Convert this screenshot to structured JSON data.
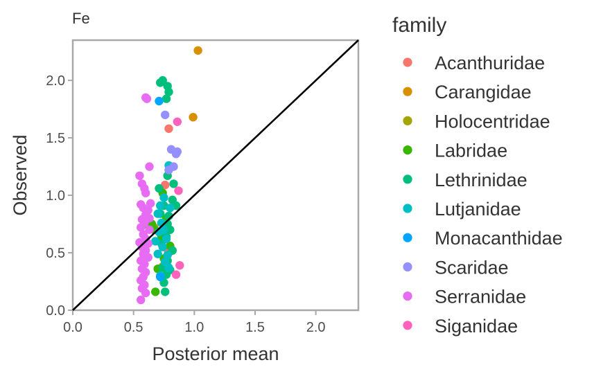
{
  "chart_data": {
    "type": "scatter",
    "title": "Fe",
    "xlabel": "Posterior mean",
    "ylabel": "Observed",
    "xlim": [
      0,
      2.35
    ],
    "ylim": [
      0,
      2.35
    ],
    "x_ticks": [
      {
        "value": 0.0,
        "label": "0.0"
      },
      {
        "value": 0.5,
        "label": "0.5"
      },
      {
        "value": 1.0,
        "label": "1.0"
      },
      {
        "value": 1.5,
        "label": "1.5"
      },
      {
        "value": 2.0,
        "label": "2.0"
      }
    ],
    "y_ticks": [
      {
        "value": 0.0,
        "label": "0.0"
      },
      {
        "value": 0.5,
        "label": "0.5"
      },
      {
        "value": 1.0,
        "label": "1.0"
      },
      {
        "value": 1.5,
        "label": "1.5"
      },
      {
        "value": 2.0,
        "label": "2.0"
      }
    ],
    "grid": false,
    "reference_line": {
      "type": "identity",
      "color": "#000000"
    },
    "legend": {
      "title": "family",
      "placement": "right"
    },
    "series": [
      {
        "name": "Acanthuridae",
        "color": "#F8766D",
        "points": [
          [
            0.79,
            1.58
          ],
          [
            0.76,
            1.09
          ],
          [
            0.8,
            0.56
          ],
          [
            0.8,
            0.51
          ],
          [
            0.78,
            0.53
          ]
        ]
      },
      {
        "name": "Carangidae",
        "color": "#D89000",
        "points": [
          [
            1.03,
            2.26
          ],
          [
            0.99,
            1.68
          ]
        ]
      },
      {
        "name": "Holocentridae",
        "color": "#A3A500",
        "points": [
          [
            0.7,
            0.36
          ],
          [
            0.74,
            0.38
          ],
          [
            0.67,
            0.72
          ]
        ]
      },
      {
        "name": "Labridae",
        "color": "#39B600",
        "points": [
          [
            0.65,
            0.75
          ],
          [
            0.67,
            0.7
          ],
          [
            0.73,
            0.64
          ],
          [
            0.74,
            1.02
          ],
          [
            0.7,
            0.36
          ],
          [
            0.68,
            0.16
          ],
          [
            0.77,
            0.8
          ],
          [
            0.8,
            0.56
          ],
          [
            0.63,
            0.72
          ],
          [
            0.75,
            0.45
          ]
        ]
      },
      {
        "name": "Lethrinidae",
        "color": "#00BF7D",
        "points": [
          [
            0.74,
            2.0
          ],
          [
            0.72,
            1.98
          ],
          [
            0.78,
            1.95
          ],
          [
            0.79,
            1.9
          ],
          [
            0.77,
            1.84
          ],
          [
            0.78,
            1.17
          ],
          [
            0.83,
            1.1
          ],
          [
            0.82,
            0.96
          ],
          [
            0.75,
            0.91
          ],
          [
            0.72,
            0.84
          ],
          [
            0.78,
            0.75
          ],
          [
            0.8,
            0.7
          ],
          [
            0.77,
            0.64
          ],
          [
            0.73,
            0.58
          ],
          [
            0.82,
            0.52
          ],
          [
            0.78,
            0.43
          ],
          [
            0.74,
            0.37
          ],
          [
            0.8,
            0.35
          ],
          [
            0.77,
            0.31
          ],
          [
            0.75,
            0.24
          ],
          [
            0.76,
            0.16
          ],
          [
            0.71,
            1.06
          ],
          [
            0.85,
            0.91
          ],
          [
            0.79,
            0.82
          ]
        ]
      },
      {
        "name": "Lutjanidae",
        "color": "#00BFC4",
        "points": [
          [
            0.79,
            1.26
          ],
          [
            0.75,
            0.98
          ],
          [
            0.72,
            0.91
          ],
          [
            0.7,
            0.84
          ],
          [
            0.73,
            0.76
          ],
          [
            0.71,
            0.68
          ],
          [
            0.77,
            0.62
          ],
          [
            0.74,
            0.55
          ],
          [
            0.7,
            0.49
          ],
          [
            0.76,
            0.42
          ],
          [
            0.79,
            0.37
          ],
          [
            0.72,
            0.3
          ],
          [
            0.8,
            0.89
          ],
          [
            0.68,
            0.6
          ],
          [
            0.75,
            0.7
          ],
          [
            0.78,
            0.48
          ]
        ]
      },
      {
        "name": "Monacanthidae",
        "color": "#00A5FF",
        "points": [
          [
            0.71,
            1.82
          ],
          [
            0.72,
            0.29
          ]
        ]
      },
      {
        "name": "Scaridae",
        "color": "#9590FF",
        "points": [
          [
            0.76,
            1.7
          ],
          [
            0.81,
            1.4
          ],
          [
            0.86,
            1.38
          ],
          [
            0.85,
            1.36
          ],
          [
            0.83,
            1.25
          ],
          [
            0.79,
            1.22
          ]
        ]
      },
      {
        "name": "Serranidae",
        "color": "#E76BF3",
        "points": [
          [
            0.6,
            1.85
          ],
          [
            0.61,
            1.84
          ],
          [
            0.63,
            1.25
          ],
          [
            0.55,
            1.17
          ],
          [
            0.57,
            1.1
          ],
          [
            0.59,
            1.06
          ],
          [
            0.6,
            1.02
          ],
          [
            0.56,
            0.92
          ],
          [
            0.58,
            0.89
          ],
          [
            0.62,
            0.87
          ],
          [
            0.6,
            0.83
          ],
          [
            0.57,
            0.79
          ],
          [
            0.59,
            0.76
          ],
          [
            0.56,
            0.72
          ],
          [
            0.63,
            0.7
          ],
          [
            0.58,
            0.66
          ],
          [
            0.6,
            0.62
          ],
          [
            0.55,
            0.59
          ],
          [
            0.57,
            0.55
          ],
          [
            0.6,
            0.52
          ],
          [
            0.58,
            0.49
          ],
          [
            0.62,
            0.46
          ],
          [
            0.56,
            0.43
          ],
          [
            0.59,
            0.4
          ],
          [
            0.57,
            0.36
          ],
          [
            0.6,
            0.33
          ],
          [
            0.58,
            0.29
          ],
          [
            0.56,
            0.26
          ],
          [
            0.59,
            0.22
          ],
          [
            0.57,
            0.19
          ],
          [
            0.6,
            0.15
          ],
          [
            0.56,
            0.09
          ],
          [
            0.64,
            0.93
          ],
          [
            0.63,
            0.8
          ],
          [
            0.62,
            0.58
          ]
        ]
      },
      {
        "name": "Siganidae",
        "color": "#FF62BC",
        "points": [
          [
            0.86,
            1.64
          ],
          [
            0.87,
            1.04
          ],
          [
            0.85,
            0.31
          ],
          [
            0.88,
            0.39
          ]
        ]
      }
    ]
  }
}
